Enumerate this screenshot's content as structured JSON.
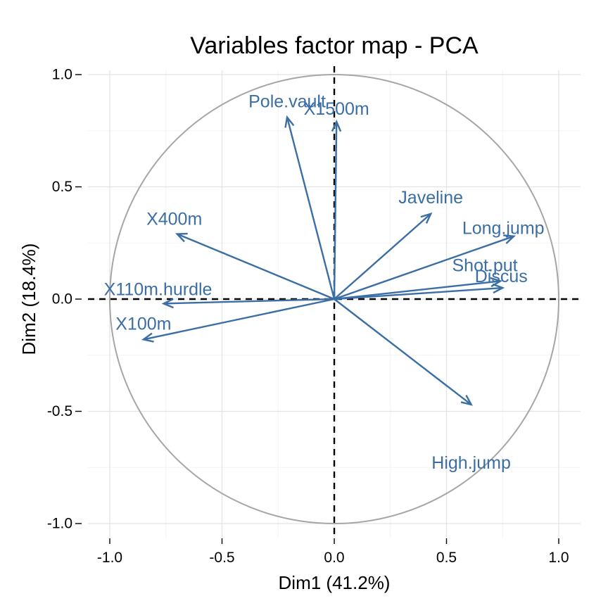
{
  "chart_data": {
    "type": "scatter",
    "title": "Variables factor map - PCA",
    "xlabel": "Dim1 (41.2%)",
    "ylabel": "Dim2 (18.4%)",
    "xlim": [
      -1.0,
      1.0
    ],
    "ylim": [
      -1.0,
      1.0
    ],
    "x_ticks": [
      "-1.0",
      "-0.5",
      "0.0",
      "0.5",
      "1.0"
    ],
    "y_ticks": [
      "1.0",
      "0.5",
      "0.0",
      "-0.5",
      "-1.0"
    ],
    "x_tick_values": [
      -1.0,
      -0.5,
      0.0,
      0.5,
      1.0
    ],
    "y_tick_values": [
      1.0,
      0.5,
      0.0,
      -0.5,
      -1.0
    ],
    "grid": true,
    "correlation_circle": true,
    "reference_lines": "dashed x=0 and y=0",
    "series": [
      {
        "points": [
          {
            "label": "X100m",
            "x": -0.85,
            "y": -0.18
          },
          {
            "label": "Long.jump",
            "x": 0.8,
            "y": 0.28
          },
          {
            "label": "Shot.put",
            "x": 0.74,
            "y": 0.08
          },
          {
            "label": "High.jump",
            "x": 0.61,
            "y": -0.47
          },
          {
            "label": "X400m",
            "x": -0.7,
            "y": 0.29
          },
          {
            "label": "X110m.hurdle",
            "x": -0.76,
            "y": -0.02
          },
          {
            "label": "Discus",
            "x": 0.75,
            "y": 0.05
          },
          {
            "label": "Pole.vault",
            "x": -0.21,
            "y": 0.81
          },
          {
            "label": "Javeline",
            "x": 0.43,
            "y": 0.38
          },
          {
            "label": "X1500m",
            "x": 0.01,
            "y": 0.79
          }
        ]
      }
    ]
  },
  "colors": {
    "arrow": "#3b6ea5",
    "circle": "#a6a6a6",
    "reference": "#000000"
  }
}
